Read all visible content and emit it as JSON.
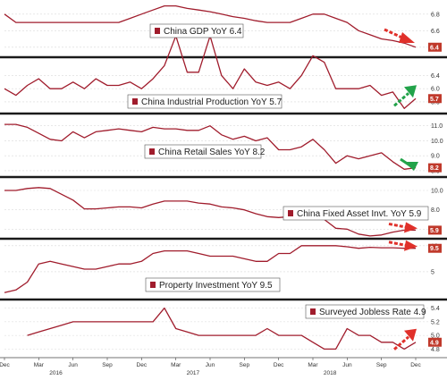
{
  "chart_data": {
    "type": "line",
    "colors": {
      "line": "#a01c2c",
      "grid": "#d9d9d9",
      "separator": "#1a1a1a",
      "label_bg": "#c0392b",
      "arrow_red": "#e0302a",
      "arrow_green": "#22a34a"
    },
    "x_ticks": [
      "Dec",
      "Mar",
      "Jun",
      "Sep",
      "Dec",
      "Mar",
      "Jun",
      "Sep",
      "Dec",
      "Mar",
      "Jun",
      "Sep",
      "Dec"
    ],
    "x_years": [
      "2016",
      "2017",
      "2018"
    ],
    "x": [
      "2015-12",
      "2016-01",
      "2016-02",
      "2016-03",
      "2016-04",
      "2016-05",
      "2016-06",
      "2016-07",
      "2016-08",
      "2016-09",
      "2016-10",
      "2016-11",
      "2016-12",
      "2017-01",
      "2017-02",
      "2017-03",
      "2017-04",
      "2017-05",
      "2017-06",
      "2017-07",
      "2017-08",
      "2017-09",
      "2017-10",
      "2017-11",
      "2017-12",
      "2018-01",
      "2018-02",
      "2018-03",
      "2018-04",
      "2018-05",
      "2018-06",
      "2018-07",
      "2018-08",
      "2018-09",
      "2018-10",
      "2018-11",
      "2018-12"
    ],
    "panels": [
      {
        "legend": "China GDP YoY 6.4",
        "last_label": "6.4",
        "arrow": "down",
        "yticks": [
          "6.8",
          "6.6",
          "6.4"
        ],
        "ylim": [
          6.3,
          6.95
        ],
        "values": [
          6.8,
          6.7,
          6.7,
          6.7,
          6.7,
          6.7,
          6.7,
          6.7,
          6.7,
          6.7,
          6.7,
          6.75,
          6.8,
          6.85,
          6.9,
          6.9,
          6.87,
          6.85,
          6.83,
          6.8,
          6.77,
          6.75,
          6.72,
          6.7,
          6.7,
          6.7,
          6.75,
          6.8,
          6.8,
          6.75,
          6.7,
          6.6,
          6.55,
          6.5,
          6.48,
          6.45,
          6.4
        ]
      },
      {
        "legend": "China Industrial Production YoY 5.7",
        "last_label": "5.7",
        "arrow": "up",
        "yticks": [
          "6.4",
          "6.0",
          "5.6"
        ],
        "ylim": [
          5.3,
          6.9
        ],
        "values": [
          6.0,
          5.8,
          6.1,
          6.3,
          6.0,
          6.0,
          6.2,
          6.0,
          6.3,
          6.1,
          6.1,
          6.2,
          6.0,
          6.3,
          6.7,
          7.6,
          6.5,
          6.5,
          7.6,
          6.4,
          6.0,
          6.6,
          6.2,
          6.1,
          6.2,
          6.0,
          6.4,
          7.0,
          6.8,
          6.0,
          6.0,
          6.0,
          6.1,
          5.8,
          5.9,
          5.4,
          5.7
        ]
      },
      {
        "legend": "China Retail Sales YoY 8.2",
        "last_label": "8.2",
        "arrow": "down-green",
        "yticks": [
          "11.0",
          "10.0",
          "9.0",
          "8.0"
        ],
        "ylim": [
          7.7,
          11.7
        ],
        "values": [
          11.1,
          11.1,
          10.9,
          10.5,
          10.1,
          10.0,
          10.6,
          10.2,
          10.6,
          10.7,
          10.8,
          10.7,
          10.6,
          10.9,
          10.8,
          10.8,
          10.7,
          10.7,
          11.0,
          10.4,
          10.1,
          10.3,
          10.0,
          10.2,
          9.4,
          9.4,
          9.6,
          10.1,
          9.4,
          8.5,
          9.0,
          8.8,
          9.0,
          9.2,
          8.6,
          8.1,
          8.2
        ]
      },
      {
        "legend": "China Fixed Asset Invt. YoY 5.9",
        "last_label": "5.9",
        "arrow": "right",
        "yticks": [
          "10.0",
          "8.0",
          "6.0"
        ],
        "ylim": [
          5.2,
          11.2
        ],
        "values": [
          10.0,
          10.0,
          10.2,
          10.3,
          10.2,
          9.6,
          9.0,
          8.1,
          8.1,
          8.2,
          8.3,
          8.3,
          8.2,
          8.6,
          8.9,
          8.9,
          8.9,
          8.7,
          8.6,
          8.3,
          8.2,
          8.0,
          7.6,
          7.3,
          7.2,
          7.3,
          7.6,
          7.5,
          7.0,
          6.1,
          6.0,
          5.5,
          5.3,
          5.4,
          5.7,
          5.9,
          5.9
        ]
      },
      {
        "legend": "Property Investment YoY 9.5",
        "last_label": "9.5",
        "arrow": "right",
        "yticks": [
          "10",
          "5"
        ],
        "ylim": [
          0,
          11
        ],
        "values": [
          1.0,
          1.5,
          3.0,
          6.5,
          7.0,
          6.5,
          6.0,
          5.5,
          5.5,
          6.0,
          6.5,
          6.5,
          7.0,
          8.5,
          9.0,
          9.0,
          9.0,
          8.5,
          8.0,
          8.0,
          8.0,
          7.5,
          7.0,
          7.0,
          8.5,
          8.5,
          10.0,
          10.0,
          10.0,
          10.0,
          9.8,
          9.5,
          9.7,
          9.6,
          9.6,
          9.5,
          9.5
        ]
      },
      {
        "legend": "Surveyed Jobless Rate 4.9",
        "last_label": "4.9",
        "arrow": "up",
        "yticks": [
          "5.4",
          "5.2",
          "5.0",
          "4.8"
        ],
        "ylim": [
          4.7,
          5.5
        ],
        "values": [
          null,
          null,
          5.0,
          5.05,
          5.1,
          5.15,
          5.2,
          5.2,
          5.2,
          5.2,
          5.2,
          5.2,
          5.2,
          5.2,
          5.4,
          5.1,
          5.05,
          5.0,
          5.0,
          5.0,
          5.0,
          5.0,
          5.0,
          5.1,
          5.0,
          5.0,
          5.0,
          4.9,
          4.8,
          4.8,
          5.1,
          5.0,
          5.0,
          4.9,
          4.9,
          4.8,
          4.9
        ]
      }
    ]
  }
}
